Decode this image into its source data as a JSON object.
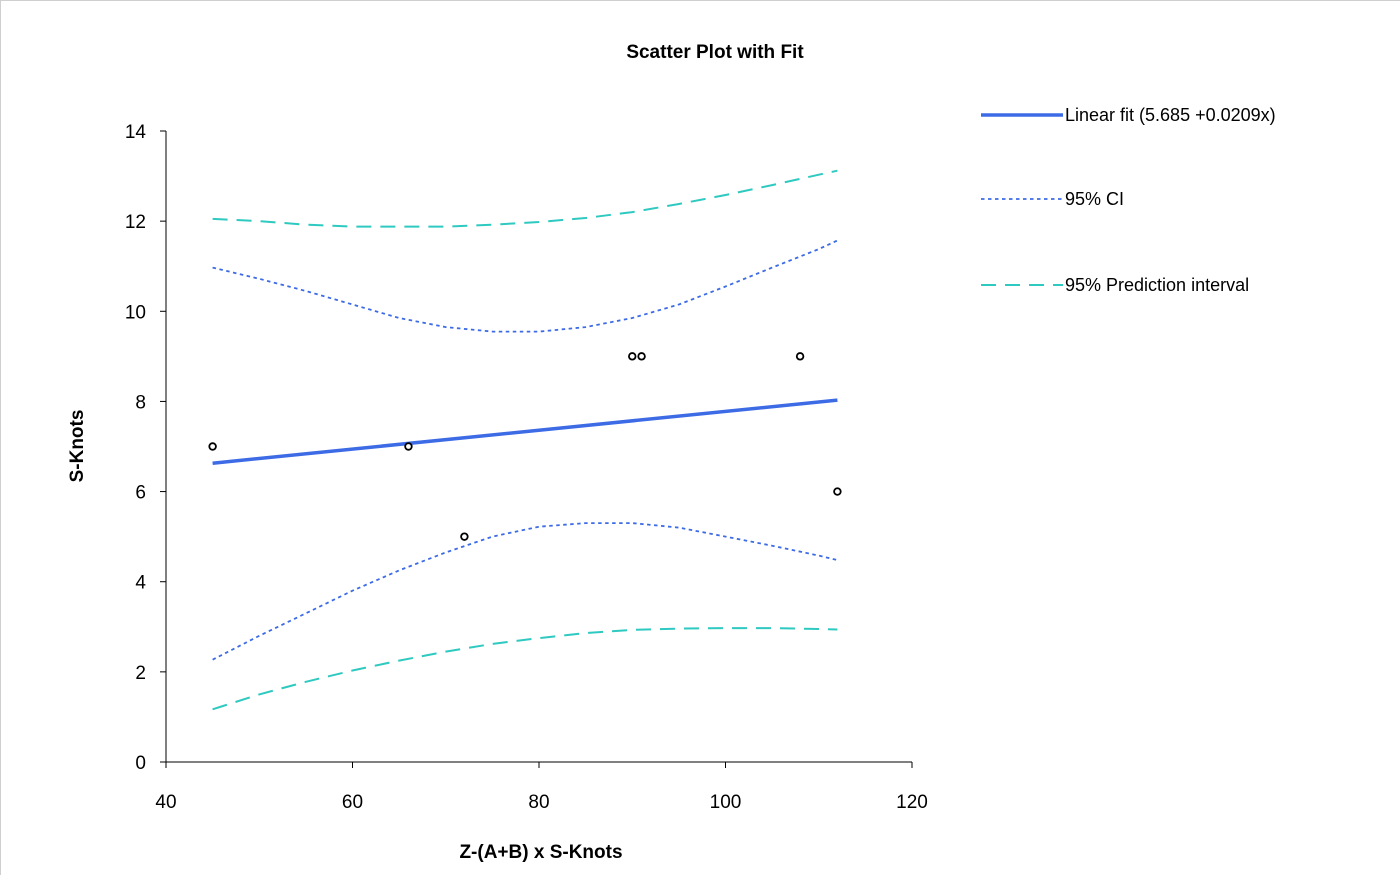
{
  "chart_data": {
    "type": "scatter",
    "title": "Scatter Plot with Fit",
    "xlabel": "Z-(A+B) x S-Knots",
    "ylabel": "S-Knots",
    "xlim": [
      40,
      120
    ],
    "ylim": [
      0,
      14
    ],
    "x_ticks": [
      40,
      60,
      80,
      100,
      120
    ],
    "y_ticks": [
      0,
      2,
      4,
      6,
      8,
      10,
      12,
      14
    ],
    "grid": false,
    "legend_position": "right",
    "points": {
      "x": [
        45,
        66,
        72,
        90,
        91,
        108,
        112
      ],
      "y": [
        7,
        7,
        5,
        9,
        9,
        9,
        6
      ]
    },
    "series": [
      {
        "name": "Linear fit (5.685  +0.0209x)",
        "style": "solid",
        "color": "#3d6be6",
        "x": [
          45,
          112
        ],
        "y": [
          6.63,
          8.03
        ]
      },
      {
        "name": "95% CI",
        "style": "dotted",
        "color": "#3d6be6",
        "upper": {
          "x": [
            45,
            50,
            55,
            60,
            65,
            70,
            75,
            80,
            85,
            90,
            95,
            100,
            105,
            110,
            112
          ],
          "y": [
            10.97,
            10.72,
            10.45,
            10.15,
            9.85,
            9.65,
            9.55,
            9.55,
            9.65,
            9.85,
            10.15,
            10.55,
            10.97,
            11.38,
            11.57
          ]
        },
        "lower": {
          "x": [
            45,
            50,
            55,
            60,
            65,
            70,
            75,
            80,
            85,
            90,
            95,
            100,
            105,
            110,
            112
          ],
          "y": [
            2.27,
            2.8,
            3.3,
            3.8,
            4.25,
            4.65,
            5.0,
            5.22,
            5.3,
            5.3,
            5.2,
            5.0,
            4.8,
            4.58,
            4.48
          ]
        }
      },
      {
        "name": "95% Prediction interval",
        "style": "dashed",
        "color": "#2ec9c0",
        "upper": {
          "x": [
            45,
            50,
            55,
            60,
            65,
            70,
            75,
            80,
            85,
            90,
            95,
            100,
            105,
            110,
            112
          ],
          "y": [
            12.05,
            12.0,
            11.92,
            11.88,
            11.88,
            11.88,
            11.92,
            11.98,
            12.07,
            12.2,
            12.38,
            12.58,
            12.8,
            13.03,
            13.12
          ]
        },
        "lower": {
          "x": [
            45,
            50,
            55,
            60,
            65,
            70,
            75,
            80,
            85,
            90,
            95,
            100,
            105,
            110,
            112
          ],
          "y": [
            1.17,
            1.5,
            1.78,
            2.03,
            2.25,
            2.45,
            2.62,
            2.75,
            2.86,
            2.93,
            2.96,
            2.97,
            2.97,
            2.95,
            2.94
          ]
        }
      }
    ]
  }
}
